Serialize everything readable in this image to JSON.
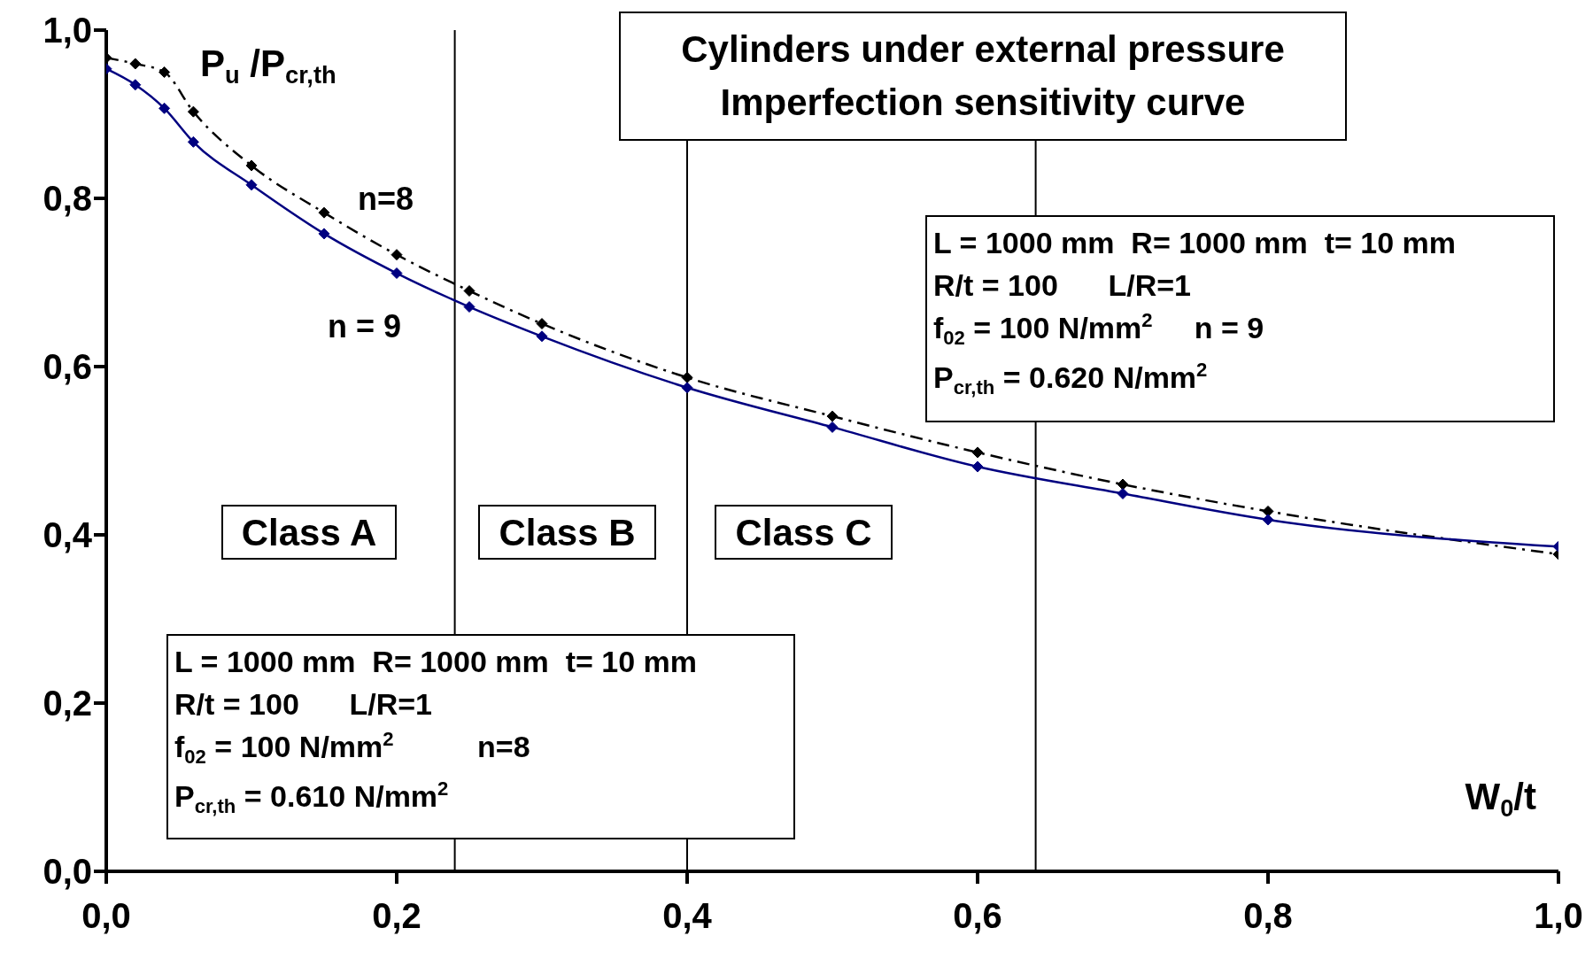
{
  "chart_data": {
    "type": "line",
    "title": "Cylinders under external pressure",
    "subtitle": "Imperfection sensitivity curve",
    "xlabel": "W$_{0}$/t",
    "ylabel": "P$_{u}$ /P$_{cr,th}$",
    "x": [
      0,
      0.02,
      0.04,
      0.06,
      0.1,
      0.15,
      0.2,
      0.25,
      0.3,
      0.4,
      0.5,
      0.6,
      0.7,
      0.8,
      1.0
    ],
    "series": [
      {
        "name": "n=8",
        "color": "#000000",
        "line_style": "dashed",
        "values": [
          0.967,
          0.96,
          0.95,
          0.903,
          0.839,
          0.783,
          0.733,
          0.69,
          0.651,
          0.587,
          0.541,
          0.498,
          0.46,
          0.428,
          0.377
        ]
      },
      {
        "name": "n = 9",
        "color": "#000080",
        "line_style": "solid",
        "values": [
          0.954,
          0.935,
          0.907,
          0.867,
          0.816,
          0.758,
          0.711,
          0.671,
          0.636,
          0.575,
          0.528,
          0.481,
          0.449,
          0.418,
          0.386
        ]
      }
    ],
    "marker": "diamond",
    "xlim": [
      0,
      1
    ],
    "xticks": [
      {
        "value": 0,
        "label": "0,0"
      },
      {
        "value": 0.2,
        "label": "0,2"
      },
      {
        "value": 0.4,
        "label": "0,4"
      },
      {
        "value": 0.6,
        "label": "0,6"
      },
      {
        "value": 0.8,
        "label": "0,8"
      },
      {
        "value": 1,
        "label": "1,0"
      }
    ],
    "ylim": [
      0,
      1
    ],
    "yticks": [
      {
        "value": 0,
        "label": "0,0"
      },
      {
        "value": 0.2,
        "label": "0,2"
      },
      {
        "value": 0.4,
        "label": "0,4"
      },
      {
        "value": 0.6,
        "label": "0,6"
      },
      {
        "value": 0.8,
        "label": "0,8"
      },
      {
        "value": 1,
        "label": "1,0"
      }
    ],
    "ref_lines": [
      {
        "axis": "x",
        "value": 0.24
      },
      {
        "axis": "x",
        "value": 0.4
      },
      {
        "axis": "x",
        "value": 0.64
      }
    ],
    "annotations": [
      "L = 1000 mm  R= 1000 mm  t= 10 mm\nR/t = 100      L/R=1\nf$_{02}$ = 100 N/mm$^{2}$     n = 9\nP$_{cr,th}$ = 0.620 N/mm$^{2}$",
      "L = 1000 mm  R= 1000 mm  t= 10 mm\nR/t = 100      L/R=1\nf$_{02}$ = 100 N/mm$^{2}$          n=8\nP$_{cr,th}$ = 0.610 N/mm$^{2}$",
      "Class A",
      "Class B",
      "Class C"
    ]
  }
}
